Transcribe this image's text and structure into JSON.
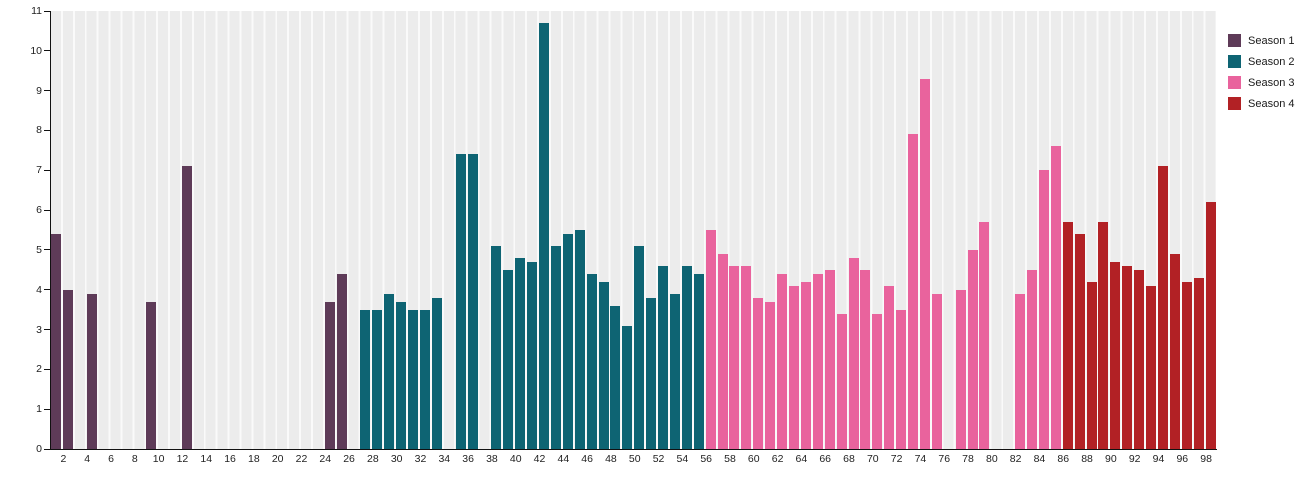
{
  "chart_data": {
    "type": "bar",
    "title": "",
    "xlabel": "",
    "ylabel": "",
    "ylim": [
      0,
      11
    ],
    "x_range": [
      1,
      98
    ],
    "yticks": [
      0,
      1,
      2,
      3,
      4,
      5,
      6,
      7,
      8,
      9,
      10,
      11
    ],
    "xticks": [
      2,
      4,
      6,
      8,
      10,
      12,
      14,
      16,
      18,
      20,
      22,
      24,
      26,
      28,
      30,
      32,
      34,
      36,
      38,
      40,
      42,
      44,
      46,
      48,
      50,
      52,
      54,
      56,
      58,
      60,
      62,
      64,
      66,
      68,
      70,
      72,
      74,
      76,
      78,
      80,
      82,
      84,
      86,
      88,
      90,
      92,
      94,
      96,
      98
    ],
    "grid": "vertical-striped-bands",
    "legend_position": "top-right-outside",
    "series": [
      {
        "name": "Season 1",
        "color": "#5e3b58",
        "data": [
          [
            1,
            5.4
          ],
          [
            2,
            4.0
          ],
          [
            4,
            3.9
          ],
          [
            9,
            3.7
          ],
          [
            12,
            7.1
          ],
          [
            24,
            3.7
          ],
          [
            25,
            4.4
          ]
        ]
      },
      {
        "name": "Season 2",
        "color": "#0e6473",
        "data": [
          [
            27,
            3.5
          ],
          [
            28,
            3.5
          ],
          [
            29,
            3.9
          ],
          [
            30,
            3.7
          ],
          [
            31,
            3.5
          ],
          [
            32,
            3.5
          ],
          [
            33,
            3.8
          ],
          [
            35,
            7.4
          ],
          [
            36,
            7.4
          ],
          [
            38,
            5.1
          ],
          [
            39,
            4.5
          ],
          [
            40,
            4.8
          ],
          [
            41,
            4.7
          ],
          [
            42,
            10.7
          ],
          [
            43,
            5.1
          ],
          [
            44,
            5.4
          ],
          [
            45,
            5.5
          ],
          [
            46,
            4.4
          ],
          [
            47,
            4.2
          ],
          [
            48,
            3.6
          ],
          [
            49,
            3.1
          ],
          [
            50,
            5.1
          ],
          [
            51,
            3.8
          ],
          [
            52,
            4.6
          ],
          [
            53,
            3.9
          ],
          [
            54,
            4.6
          ],
          [
            55,
            4.4
          ]
        ]
      },
      {
        "name": "Season 3",
        "color": "#e9639d",
        "data": [
          [
            56,
            5.5
          ],
          [
            57,
            4.9
          ],
          [
            58,
            4.6
          ],
          [
            59,
            4.6
          ],
          [
            60,
            3.8
          ],
          [
            61,
            3.7
          ],
          [
            62,
            4.4
          ],
          [
            63,
            4.1
          ],
          [
            64,
            4.2
          ],
          [
            65,
            4.4
          ],
          [
            66,
            4.5
          ],
          [
            67,
            3.4
          ],
          [
            68,
            4.8
          ],
          [
            69,
            4.5
          ],
          [
            70,
            3.4
          ],
          [
            71,
            4.1
          ],
          [
            72,
            3.5
          ],
          [
            73,
            7.9
          ],
          [
            74,
            9.3
          ],
          [
            75,
            3.9
          ],
          [
            77,
            4.0
          ],
          [
            78,
            5.0
          ],
          [
            79,
            5.7
          ],
          [
            82,
            3.9
          ],
          [
            83,
            4.5
          ],
          [
            84,
            7.0
          ],
          [
            85,
            7.6
          ]
        ]
      },
      {
        "name": "Season 4",
        "color": "#b22125",
        "data": [
          [
            86,
            5.7
          ],
          [
            87,
            5.4
          ],
          [
            88,
            4.2
          ],
          [
            89,
            5.7
          ],
          [
            90,
            4.7
          ],
          [
            91,
            4.6
          ],
          [
            92,
            4.5
          ],
          [
            93,
            4.1
          ],
          [
            94,
            7.1
          ],
          [
            95,
            4.9
          ],
          [
            96,
            4.2
          ],
          [
            97,
            4.3
          ],
          [
            98,
            6.2
          ]
        ]
      }
    ]
  },
  "legend": {
    "items": [
      {
        "label": "Season 1",
        "color": "#5e3b58"
      },
      {
        "label": "Season 2",
        "color": "#0e6473"
      },
      {
        "label": "Season 3",
        "color": "#e9639d"
      },
      {
        "label": "Season 4",
        "color": "#b22125"
      }
    ]
  }
}
